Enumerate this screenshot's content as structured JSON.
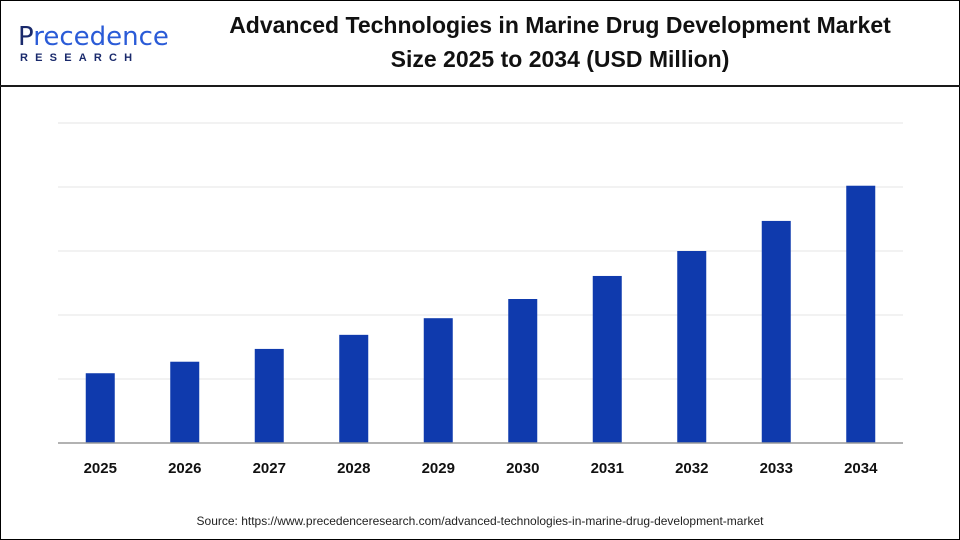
{
  "logo": {
    "brand_first": "P",
    "brand_rest": "recedence",
    "brand_sub": "RESEARCH"
  },
  "title_line1": "Advanced Technologies in Marine Drug Development Market",
  "title_line2": "Size 2025 to 2034 (USD Million)",
  "source": "Source: https://www.precedenceresearch.com/advanced-technologies-in-marine-drug-development-market",
  "colors": {
    "bar": "#0f3aad",
    "grid": "#e6e6e6",
    "axis": "#999999"
  },
  "chart_data": {
    "type": "bar",
    "title": "Advanced Technologies in Marine Drug Development Market Size 2025 to 2034 (USD Million)",
    "categories": [
      "2025",
      "2026",
      "2027",
      "2028",
      "2029",
      "2030",
      "2031",
      "2032",
      "2033",
      "2034"
    ],
    "values": [
      1.09,
      1.27,
      1.47,
      1.69,
      1.95,
      2.25,
      2.61,
      3.0,
      3.47,
      4.02
    ],
    "ylim": [
      0,
      5
    ],
    "grid": true,
    "y_tick_labels_shown": false
  }
}
